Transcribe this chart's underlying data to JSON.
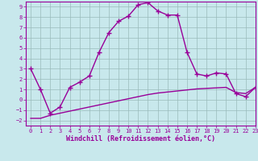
{
  "upper_x": [
    0,
    1,
    2,
    3,
    4,
    5,
    6,
    7,
    8,
    9,
    10,
    11,
    12,
    13,
    14,
    15,
    16,
    17,
    18,
    19,
    20,
    21,
    22,
    23
  ],
  "upper_y": [
    3.0,
    1.0,
    -1.3,
    -0.7,
    1.2,
    1.7,
    2.3,
    4.6,
    6.5,
    7.6,
    8.1,
    9.2,
    9.4,
    8.6,
    8.2,
    8.2,
    4.6,
    2.5,
    2.3,
    2.6,
    2.5,
    0.6,
    0.3,
    1.2
  ],
  "lower_x": [
    0,
    1,
    2,
    3,
    4,
    5,
    6,
    7,
    8,
    9,
    10,
    11,
    12,
    13,
    14,
    15,
    16,
    17,
    18,
    19,
    20,
    21,
    22,
    23
  ],
  "lower_y": [
    -1.8,
    -1.8,
    -1.5,
    -1.3,
    -1.1,
    -0.9,
    -0.7,
    -0.5,
    -0.3,
    -0.1,
    0.1,
    0.3,
    0.5,
    0.65,
    0.75,
    0.85,
    0.95,
    1.05,
    1.1,
    1.15,
    1.2,
    0.7,
    0.6,
    1.2
  ],
  "line_color": "#990099",
  "bg_color": "#c8e8ec",
  "grid_color": "#99bbbb",
  "xlabel": "Windchill (Refroidissement éolien,°C)",
  "xlim": [
    -0.5,
    23
  ],
  "ylim": [
    -2.5,
    9.5
  ],
  "xticks": [
    0,
    1,
    2,
    3,
    4,
    5,
    6,
    7,
    8,
    9,
    10,
    11,
    12,
    13,
    14,
    15,
    16,
    17,
    18,
    19,
    20,
    21,
    22,
    23
  ],
  "yticks": [
    -2,
    -1,
    0,
    1,
    2,
    3,
    4,
    5,
    6,
    7,
    8,
    9
  ],
  "marker": "+",
  "markersize": 4,
  "linewidth": 1.0,
  "tick_fontsize": 5.0,
  "xlabel_fontsize": 6.0
}
